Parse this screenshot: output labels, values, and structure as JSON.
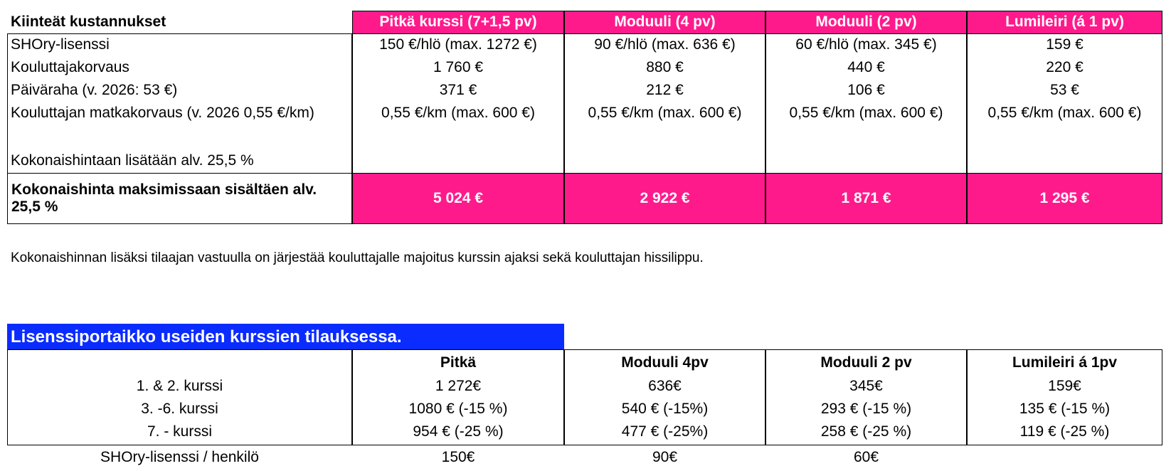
{
  "table1": {
    "header": [
      "Kiinteät kustannukset",
      "Pitkä kurssi (7+1,5 pv)",
      "Moduuli (4 pv)",
      "Moduuli (2 pv)",
      "Lumileiri (á 1 pv)"
    ],
    "rows": [
      [
        "SHOry-lisenssi",
        "150 €/hlö (max. 1272 €)",
        "90 €/hlö (max. 636 €)",
        "60 €/hlö (max. 345 €)",
        "159 €"
      ],
      [
        "Kouluttajakorvaus",
        "1 760 €",
        "880 €",
        "440 €",
        "220 €"
      ],
      [
        "Päiväraha (v. 2026: 53 €)",
        "371 €",
        "212 €",
        "106 €",
        "53 €"
      ],
      [
        "Kouluttajan matkakorvaus (v. 2026 0,55 €/km)",
        "0,55 €/km (max. 600 €)",
        "0,55 €/km (max. 600 €)",
        "0,55 €/km (max. 600 €)",
        "0,55 €/km (max. 600 €)"
      ]
    ],
    "vat_note": "Kokonaishintaan lisätään alv. 25,5 %",
    "total": [
      "Kokonaishinta maksimissaan sisältäen alv. 25,5 %",
      "5 024 €",
      "2 922 €",
      "1 871 €",
      "1 295 €"
    ]
  },
  "note": "Kokonaishinnan lisäksi tilaajan vastuulla on järjestää kouluttajalle majoitus kurssin ajaksi sekä kouluttajan hissilippu.",
  "table2": {
    "title": "Lisenssiportaikko useiden kurssien tilauksessa.",
    "header": [
      "Pitkä",
      "Moduuli 4pv",
      "Moduuli 2 pv",
      "Lumileiri á 1pv"
    ],
    "rows": [
      [
        "1. & 2. kurssi",
        "1 272€",
        "636€",
        "345€",
        "159€"
      ],
      [
        "3. -6. kurssi",
        "1080 € (-15 %)",
        "540 € (-15%)",
        "293 € (-15 %)",
        "135 € (-15 %)"
      ],
      [
        "7. - kurssi",
        "954 € (-25 %)",
        "477 € (-25%)",
        "258 € (-25 %)",
        "119 € (-25 %)"
      ]
    ],
    "footer": [
      "SHOry-lisenssi / henkilö",
      "150€",
      "90€",
      "60€"
    ]
  }
}
